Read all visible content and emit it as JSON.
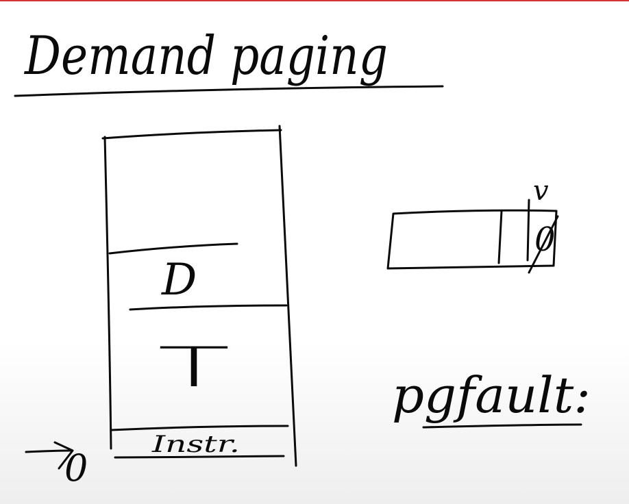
{
  "title": "Demand paging",
  "memory": {
    "label_d": "D",
    "label_t": "T",
    "label_instr": "Instr."
  },
  "arrow_label": "0",
  "pte": {
    "bit_label": "v",
    "value_label": "0"
  },
  "pgfault_label": "pgfault:",
  "colors": {
    "ink": "#0a0a0a",
    "accent_top_rule": "#d33333",
    "background": "#ffffff"
  }
}
